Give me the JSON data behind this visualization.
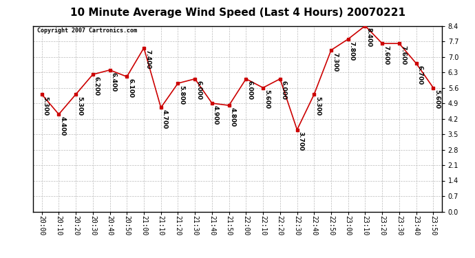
{
  "title": "10 Minute Average Wind Speed (Last 4 Hours) 20070221",
  "copyright": "Copyright 2007 Cartronics.com",
  "x_labels": [
    "20:00",
    "20:10",
    "20:20",
    "20:30",
    "20:40",
    "20:50",
    "21:00",
    "21:10",
    "21:20",
    "21:30",
    "21:40",
    "21:50",
    "22:00",
    "22:10",
    "22:20",
    "22:30",
    "22:40",
    "22:50",
    "23:00",
    "23:10",
    "23:20",
    "23:30",
    "23:40",
    "23:50"
  ],
  "y_values": [
    5.3,
    4.4,
    5.3,
    6.2,
    6.4,
    6.1,
    7.4,
    4.7,
    5.8,
    6.0,
    4.9,
    4.8,
    6.0,
    5.6,
    6.0,
    3.7,
    5.3,
    7.3,
    7.8,
    8.4,
    7.6,
    7.6,
    6.7,
    5.6
  ],
  "line_color": "#cc0000",
  "marker_color": "#cc0000",
  "bg_color": "#ffffff",
  "plot_bg_color": "#ffffff",
  "grid_color": "#bbbbbb",
  "ylim": [
    0.0,
    8.4
  ],
  "yticks": [
    0.0,
    0.7,
    1.4,
    2.1,
    2.8,
    3.5,
    4.2,
    4.9,
    5.6,
    6.3,
    7.0,
    7.7,
    8.4
  ],
  "title_fontsize": 11,
  "tick_fontsize": 7,
  "annot_fontsize": 6.5
}
